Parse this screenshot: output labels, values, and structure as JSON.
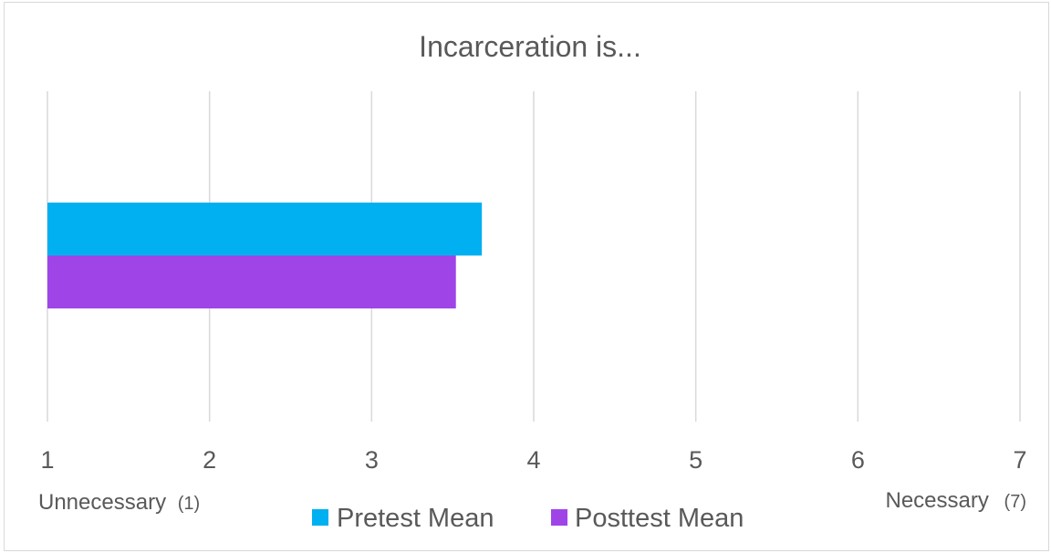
{
  "chart_data": {
    "type": "bar",
    "orientation": "horizontal",
    "title": "Incarceration is...",
    "categories": [
      ""
    ],
    "series": [
      {
        "name": "Pretest Mean",
        "values": [
          3.68
        ],
        "color": "#00b0f0"
      },
      {
        "name": "Posttest Mean",
        "values": [
          3.52
        ],
        "color": "#9f45e8"
      }
    ],
    "xlim": [
      1,
      7
    ],
    "ticks": [
      "1",
      "2",
      "3",
      "4",
      "5",
      "6",
      "7"
    ],
    "axis_end_labels": {
      "low": {
        "text": "Unnecessary",
        "value": "(1)"
      },
      "high": {
        "text": "Necessary",
        "value": "(7)"
      }
    },
    "grid": true,
    "legend_position": "bottom"
  }
}
